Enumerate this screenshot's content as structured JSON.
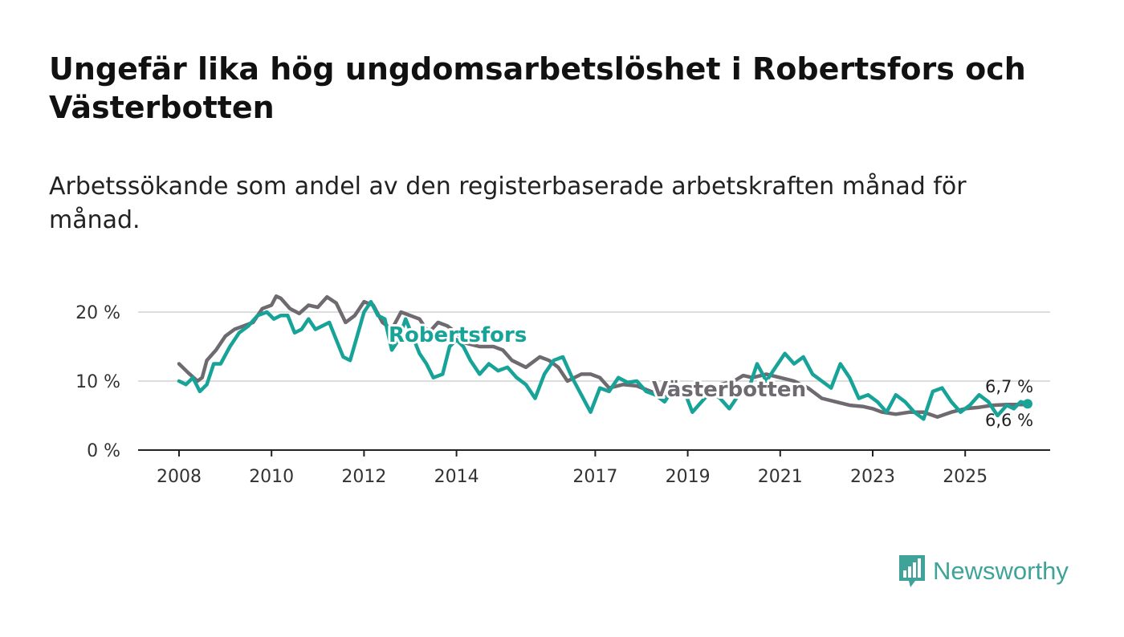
{
  "title": "Ungefär lika hög ungdomsarbetslöshet i Robertsfors och Västerbotten",
  "subtitle": "Arbetssökande som andel av den registerbaserade arbetskraften månad för månad.",
  "brand": {
    "name": "Newsworthy",
    "color": "#3fa39a",
    "icon": "bar-chart-bubble-icon"
  },
  "colors": {
    "robertsfors": "#17a398",
    "vasterbotten": "#6e6a70",
    "grid": "#dddddd",
    "axis": "#222222"
  },
  "chart_data": {
    "type": "line",
    "title": "Ungefär lika hög ungdomsarbetslöshet i Robertsfors och Västerbotten",
    "xlabel": "",
    "ylabel": "",
    "xlim": [
      2008.0,
      2026.75
    ],
    "ylim": [
      0,
      20
    ],
    "y_ticks": [
      {
        "value": 0,
        "label": "0 %"
      },
      {
        "value": 10,
        "label": "10 %"
      },
      {
        "value": 20,
        "label": "20 %"
      }
    ],
    "x_ticks": [
      {
        "value": 2008,
        "label": "2008"
      },
      {
        "value": 2010,
        "label": "2010"
      },
      {
        "value": 2012,
        "label": "2012"
      },
      {
        "value": 2014,
        "label": "2014"
      },
      {
        "value": 2017,
        "label": "2017"
      },
      {
        "value": 2019,
        "label": "2019"
      },
      {
        "value": 2021,
        "label": "2021"
      },
      {
        "value": 2023,
        "label": "2023"
      },
      {
        "value": 2025,
        "label": "2025"
      }
    ],
    "grid": true,
    "series": [
      {
        "name": "Västerbotten",
        "label": "Västerbotten",
        "end_label": "6,6 %",
        "x": [
          2008.0,
          2008.2,
          2008.4,
          2008.5,
          2008.6,
          2008.8,
          2009.0,
          2009.2,
          2009.4,
          2009.6,
          2009.8,
          2010.0,
          2010.1,
          2010.2,
          2010.4,
          2010.6,
          2010.8,
          2011.0,
          2011.2,
          2011.4,
          2011.6,
          2011.8,
          2012.0,
          2012.2,
          2012.4,
          2012.6,
          2012.8,
          2013.0,
          2013.2,
          2013.4,
          2013.6,
          2013.8,
          2014.0,
          2014.2,
          2014.5,
          2014.8,
          2015.0,
          2015.2,
          2015.5,
          2015.8,
          2016.0,
          2016.2,
          2016.4,
          2016.7,
          2016.9,
          2017.1,
          2017.3,
          2017.6,
          2017.9,
          2018.2,
          2018.5,
          2018.8,
          2019.1,
          2019.4,
          2019.7,
          2020.0,
          2020.2,
          2020.4,
          2020.7,
          2021.0,
          2021.3,
          2021.6,
          2021.9,
          2022.2,
          2022.5,
          2022.8,
          2023.0,
          2023.2,
          2023.5,
          2023.8,
          2024.1,
          2024.4,
          2024.7,
          2025.0,
          2025.3,
          2025.6,
          2025.9,
          2026.05,
          2026.2,
          2026.35
        ],
        "y": [
          12.5,
          11.2,
          10.0,
          10.5,
          13.0,
          14.5,
          16.5,
          17.5,
          18.0,
          18.5,
          20.5,
          21.0,
          22.3,
          22.0,
          20.5,
          19.8,
          21.0,
          20.7,
          22.2,
          21.3,
          18.5,
          19.5,
          21.5,
          21.0,
          18.5,
          17.5,
          20.0,
          19.5,
          19.0,
          17.0,
          18.5,
          18.0,
          17.0,
          15.5,
          15.0,
          15.0,
          14.5,
          13.0,
          12.0,
          13.5,
          13.0,
          12.0,
          10.0,
          11.0,
          11.0,
          10.5,
          9.0,
          9.5,
          9.3,
          8.5,
          8.0,
          8.2,
          8.5,
          8.0,
          9.5,
          10.0,
          10.8,
          10.5,
          11.0,
          10.5,
          10.0,
          9.0,
          7.5,
          7.0,
          6.5,
          6.3,
          6.0,
          5.5,
          5.2,
          5.5,
          5.5,
          4.8,
          5.5,
          6.0,
          6.2,
          6.5,
          6.6,
          6.6,
          6.6,
          6.6
        ]
      },
      {
        "name": "Robertsfors",
        "label": "Robertsfors",
        "end_label": "6,7 %",
        "x": [
          2008.0,
          2008.15,
          2008.3,
          2008.45,
          2008.6,
          2008.75,
          2008.9,
          2009.1,
          2009.3,
          2009.5,
          2009.7,
          2009.9,
          2010.05,
          2010.2,
          2010.35,
          2010.5,
          2010.65,
          2010.8,
          2010.95,
          2011.1,
          2011.25,
          2011.4,
          2011.55,
          2011.7,
          2011.85,
          2012.0,
          2012.15,
          2012.3,
          2012.45,
          2012.6,
          2012.75,
          2012.9,
          2013.05,
          2013.2,
          2013.35,
          2013.5,
          2013.7,
          2013.85,
          2014.0,
          2014.15,
          2014.3,
          2014.5,
          2014.7,
          2014.9,
          2015.1,
          2015.3,
          2015.5,
          2015.7,
          2015.9,
          2016.1,
          2016.3,
          2016.5,
          2016.7,
          2016.9,
          2017.1,
          2017.3,
          2017.5,
          2017.7,
          2017.9,
          2018.1,
          2018.3,
          2018.5,
          2018.7,
          2018.9,
          2019.1,
          2019.3,
          2019.5,
          2019.7,
          2019.9,
          2020.1,
          2020.3,
          2020.5,
          2020.7,
          2020.9,
          2021.1,
          2021.3,
          2021.5,
          2021.7,
          2021.9,
          2022.1,
          2022.3,
          2022.5,
          2022.7,
          2022.9,
          2023.1,
          2023.3,
          2023.5,
          2023.7,
          2023.9,
          2024.1,
          2024.3,
          2024.5,
          2024.7,
          2024.9,
          2025.1,
          2025.3,
          2025.5,
          2025.7,
          2025.9,
          2026.05,
          2026.2,
          2026.35
        ],
        "y": [
          10.0,
          9.5,
          10.5,
          8.5,
          9.5,
          12.5,
          12.5,
          15.0,
          17.0,
          18.0,
          19.5,
          20.0,
          19.0,
          19.5,
          19.5,
          17.0,
          17.5,
          19.0,
          17.5,
          18.0,
          18.5,
          16.0,
          13.5,
          13.0,
          16.5,
          20.0,
          21.5,
          19.5,
          19.0,
          14.5,
          16.0,
          19.0,
          16.5,
          14.0,
          12.5,
          10.5,
          11.0,
          15.0,
          16.0,
          15.0,
          13.0,
          11.0,
          12.5,
          11.5,
          12.0,
          10.5,
          9.5,
          7.5,
          11.0,
          13.0,
          13.5,
          10.5,
          8.0,
          5.5,
          9.0,
          8.5,
          10.5,
          9.8,
          10.0,
          8.5,
          8.0,
          7.0,
          9.0,
          9.0,
          5.5,
          7.0,
          8.5,
          7.5,
          6.0,
          8.0,
          8.5,
          12.5,
          10.0,
          12.0,
          14.0,
          12.5,
          13.5,
          11.0,
          10.0,
          9.0,
          12.5,
          10.5,
          7.5,
          8.0,
          7.0,
          5.5,
          8.0,
          7.0,
          5.5,
          4.5,
          8.5,
          9.0,
          7.0,
          5.5,
          6.5,
          8.0,
          7.0,
          5.0,
          6.5,
          6.0,
          7.0,
          6.7
        ]
      }
    ]
  }
}
